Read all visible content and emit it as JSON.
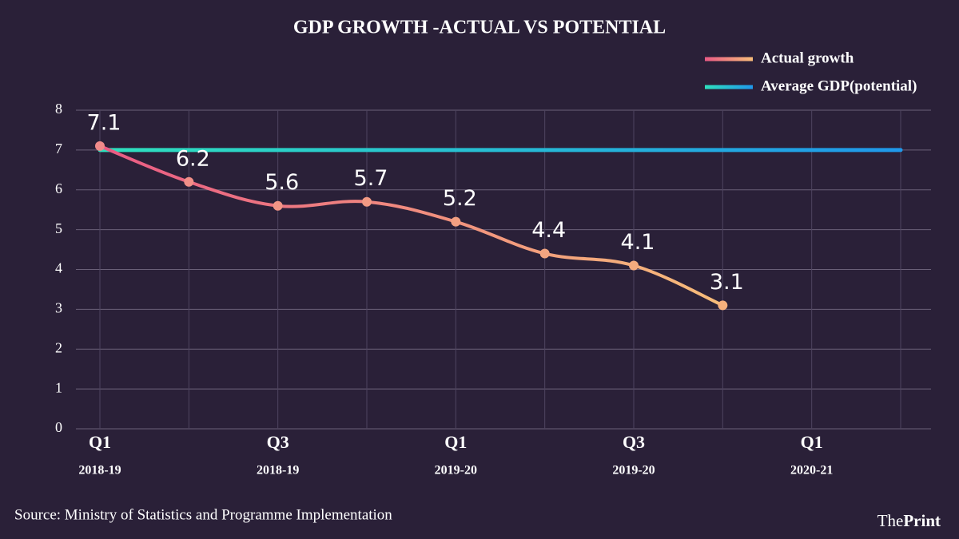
{
  "chart_data": {
    "type": "line",
    "title": "GDP GROWTH -ACTUAL VS POTENTIAL",
    "categories": [
      "Q1",
      null,
      "Q3",
      null,
      "Q1",
      null,
      "Q3",
      null,
      "Q1",
      null
    ],
    "category_years": [
      "2018-19",
      null,
      "2018-19",
      null,
      "2019-20",
      null,
      "2019-20",
      null,
      "2020-21",
      null
    ],
    "series": [
      {
        "name": "Actual growth",
        "color": "#e95a84",
        "color_end": "#f7bd7a",
        "values": [
          7.1,
          6.2,
          5.6,
          5.7,
          5.2,
          4.4,
          4.1,
          3.1,
          null,
          null
        ],
        "data_labels": true
      },
      {
        "name": "Average GDP(potential)",
        "color": "#2ee0bd",
        "color_end": "#1f98ea",
        "values": [
          7,
          7,
          7,
          7,
          7,
          7,
          7,
          7,
          7,
          7
        ]
      }
    ],
    "ylim": [
      0,
      8
    ],
    "yticks": [
      0,
      1,
      2,
      3,
      4,
      5,
      6,
      7,
      8
    ],
    "grid": true,
    "legend": "top-right",
    "source": "Source: Ministry of Statistics and Programme Implementation",
    "brand": {
      "prefix": "The",
      "name": "Print"
    }
  }
}
